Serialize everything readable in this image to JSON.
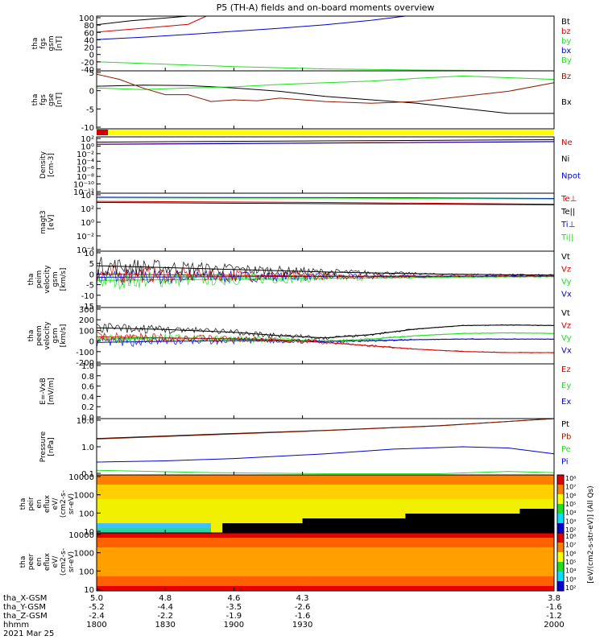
{
  "title": "P5 (TH-A) fields and on-board moments overview",
  "colors": {
    "black": "#000000",
    "red": "#d40000",
    "green": "#20e020",
    "blue": "#0000d0",
    "brown": "#8b1a00",
    "yellow": "#ffff00"
  },
  "chart_data": [
    {
      "id": "fgs_gsm",
      "type": "line",
      "ylabel": [
        "tha",
        "fgs",
        "gsm",
        "[nT]"
      ],
      "yticks": [
        "100",
        "80",
        "60",
        "40",
        "20",
        "0",
        "-20",
        "-40"
      ],
      "ylim": [
        -40,
        100
      ],
      "legend": [
        {
          "name": "Bt",
          "color": "black"
        },
        {
          "name": "bz",
          "color": "red"
        },
        {
          "name": "by",
          "color": "green"
        },
        {
          "name": "bx",
          "color": "blue"
        },
        {
          "name": "By",
          "color": "green"
        }
      ],
      "series": [
        {
          "name": "Bt",
          "color": "black",
          "x": [
            1800,
            1815,
            1830,
            1840
          ],
          "y": [
            78,
            88,
            95,
            100
          ]
        },
        {
          "name": "bz",
          "color": "red",
          "x": [
            1800,
            1820,
            1840,
            1848
          ],
          "y": [
            59,
            69,
            79,
            100
          ]
        },
        {
          "name": "bx",
          "color": "blue",
          "x": [
            1800,
            1820,
            1840,
            1860,
            1880,
            1900,
            1920,
            1935
          ],
          "y": [
            40,
            46,
            53,
            61,
            69,
            78,
            89,
            100
          ]
        },
        {
          "name": "by",
          "color": "green",
          "x": [
            1800,
            1830,
            1860,
            1900,
            1940,
            2000
          ],
          "y": [
            -17,
            -23,
            -29,
            -35,
            -38,
            -40
          ]
        }
      ]
    },
    {
      "id": "fgs_gse",
      "type": "line",
      "ylabel": [
        "tha",
        "fgs",
        "gse",
        "[nT]"
      ],
      "yticks": [
        "5",
        "0",
        "-5",
        "-10"
      ],
      "ylim": [
        -12,
        5
      ],
      "legend": [
        {
          "name": "Bz",
          "color": "brown"
        },
        {
          "name": "Bx",
          "color": "black"
        }
      ],
      "series": [
        {
          "name": "Bx",
          "color": "black",
          "x": [
            1800,
            1820,
            1840,
            1860,
            1880,
            1900,
            1920,
            1940,
            1960,
            1980,
            2000
          ],
          "y": [
            0.5,
            0.8,
            0.7,
            0.0,
            -1.0,
            -2.5,
            -3.5,
            -4.5,
            -6.0,
            -7.5,
            -7.5
          ]
        },
        {
          "name": "By",
          "color": "green",
          "x": [
            1800,
            1820,
            1840,
            1860,
            1880,
            1900,
            1920,
            1940,
            1960,
            1980,
            2000
          ],
          "y": [
            0.0,
            -0.5,
            0.0,
            0.3,
            1.0,
            1.5,
            2.0,
            2.8,
            3.5,
            3.0,
            2.5
          ]
        },
        {
          "name": "Bz",
          "color": "brown",
          "x": [
            1800,
            1810,
            1820,
            1830,
            1840,
            1850,
            1860,
            1870,
            1880,
            1890,
            1900,
            1920,
            1940,
            1960,
            1980,
            2000
          ],
          "y": [
            4.0,
            2.5,
            0.0,
            -2.0,
            -2.0,
            -4.0,
            -3.5,
            -3.8,
            -3.0,
            -3.5,
            -4.0,
            -4.5,
            -4.0,
            -2.5,
            -1.0,
            1.5
          ]
        }
      ]
    },
    {
      "id": "mode_bar",
      "type": "bar",
      "segments": [
        {
          "from": 1800,
          "to": 1805,
          "color": "red"
        },
        {
          "from": 1805,
          "to": 2000,
          "color": "yellow"
        }
      ]
    },
    {
      "id": "density",
      "type": "line",
      "log": true,
      "ylabel": [
        "Density",
        "[cm-3]"
      ],
      "yticks": [
        "10²",
        "10⁰",
        "10⁻²",
        "10⁻⁴",
        "10⁻⁶",
        "10⁻⁸",
        "10⁻¹⁰",
        "10⁻¹²"
      ],
      "ylim": [
        -12,
        2
      ],
      "legend": [
        {
          "name": "Ne",
          "color": "red"
        },
        {
          "name": "Ni",
          "color": "black"
        },
        {
          "name": "Npot",
          "color": "blue"
        }
      ],
      "series": [
        {
          "name": "Ni",
          "color": "black",
          "x": [
            1800,
            1900,
            2000
          ],
          "y": [
            0.7,
            1.0,
            1.3
          ]
        },
        {
          "name": "Ne",
          "color": "red",
          "x": [
            1800,
            1900,
            2000
          ],
          "y": [
            0.2,
            0.5,
            0.85
          ]
        },
        {
          "name": "Npot",
          "color": "blue",
          "x": [
            1800,
            1900,
            2000
          ],
          "y": [
            0.15,
            0.45,
            0.8
          ]
        }
      ]
    },
    {
      "id": "temperature",
      "type": "line",
      "log": true,
      "ylabel": [
        "magt3",
        "[eV]"
      ],
      "yticks": [
        "10⁴",
        "10²",
        "10⁰",
        "10⁻²",
        "10⁻⁴"
      ],
      "ylim": [
        -6,
        4
      ],
      "legend": [
        {
          "name": "Te⊥",
          "color": "red"
        },
        {
          "name": "Te||",
          "color": "black"
        },
        {
          "name": "Ti⊥",
          "color": "blue"
        },
        {
          "name": "Ti||",
          "color": "green"
        }
      ],
      "series": [
        {
          "name": "Ti⊥",
          "color": "blue",
          "x": [
            1800,
            1900,
            2000
          ],
          "y": [
            3.3,
            3.25,
            3.1
          ]
        },
        {
          "name": "Ti||",
          "color": "green",
          "x": [
            1800,
            1900,
            2000
          ],
          "y": [
            3.2,
            3.15,
            3.0
          ]
        },
        {
          "name": "Te⊥",
          "color": "red",
          "x": [
            1800,
            1900,
            2000
          ],
          "y": [
            2.6,
            2.4,
            2.1
          ]
        },
        {
          "name": "Te||",
          "color": "black",
          "x": [
            1800,
            1900,
            2000
          ],
          "y": [
            2.4,
            2.2,
            2.0
          ]
        }
      ]
    },
    {
      "id": "peim_velocity",
      "type": "line",
      "ylabel": [
        "tha",
        "peim",
        "velocity",
        "gsm",
        "[km/s]"
      ],
      "yticks": [
        "10",
        "5",
        "0",
        "-5",
        "-10",
        "-15"
      ],
      "ylim": [
        -15,
        12
      ],
      "legend": [
        {
          "name": "Vt",
          "color": "black"
        },
        {
          "name": "Vz",
          "color": "red"
        },
        {
          "name": "Vy",
          "color": "green"
        },
        {
          "name": "Vx",
          "color": "blue"
        }
      ],
      "series": [
        {
          "name": "Vt",
          "color": "black",
          "x": [
            1800,
            1850,
            1900,
            1950,
            2000
          ],
          "y": [
            5.0,
            3.5,
            2.0,
            1.0,
            0.5
          ]
        },
        {
          "name": "Vz",
          "color": "red",
          "x": [
            1800,
            1850,
            1900,
            1950,
            2000
          ],
          "y": [
            1.0,
            0.5,
            0.0,
            0.0,
            0.0
          ]
        },
        {
          "name": "Vy",
          "color": "green",
          "x": [
            1800,
            1850,
            1900,
            1950,
            2000
          ],
          "y": [
            -2.0,
            -1.5,
            -1.0,
            -0.5,
            -0.2
          ]
        },
        {
          "name": "Vx",
          "color": "blue",
          "x": [
            1800,
            1850,
            1900,
            1950,
            2000
          ],
          "y": [
            -0.5,
            -0.3,
            -0.2,
            0.0,
            0.0
          ]
        }
      ]
    },
    {
      "id": "peem_velocity",
      "type": "line",
      "ylabel": [
        "tha",
        "peem",
        "velocity",
        "gsm",
        "[km/s]"
      ],
      "yticks": [
        "300",
        "200",
        "100",
        "0",
        "-100",
        "-200"
      ],
      "ylim": [
        -200,
        300
      ],
      "legend": [
        {
          "name": "Vt",
          "color": "black"
        },
        {
          "name": "Vz",
          "color": "red"
        },
        {
          "name": "Vy",
          "color": "green"
        },
        {
          "name": "Vx",
          "color": "blue"
        }
      ],
      "series": [
        {
          "name": "Vt",
          "color": "black",
          "x": [
            1800,
            1830,
            1860,
            1880,
            1900,
            1920,
            1940,
            1960,
            1980,
            2000
          ],
          "y": [
            120,
            105,
            80,
            50,
            30,
            60,
            110,
            140,
            145,
            140
          ]
        },
        {
          "name": "Vy",
          "color": "green",
          "x": [
            1800,
            1830,
            1860,
            1880,
            1900,
            1920,
            1940,
            1960,
            1980,
            2000
          ],
          "y": [
            20,
            30,
            25,
            15,
            0,
            20,
            50,
            70,
            75,
            70
          ]
        },
        {
          "name": "Vx",
          "color": "blue",
          "x": [
            1800,
            1830,
            1860,
            1880,
            1900,
            1920,
            1940,
            1960,
            1980,
            2000
          ],
          "y": [
            -10,
            0,
            5,
            5,
            0,
            5,
            15,
            20,
            20,
            20
          ]
        },
        {
          "name": "Vz",
          "color": "red",
          "x": [
            1800,
            1830,
            1860,
            1880,
            1900,
            1920,
            1940,
            1960,
            1980,
            2000
          ],
          "y": [
            40,
            30,
            20,
            10,
            -10,
            -40,
            -70,
            -90,
            -100,
            -100
          ]
        }
      ]
    },
    {
      "id": "efield",
      "type": "line",
      "ylabel": [
        "E=-VxB",
        "[mV/m]"
      ],
      "yticks": [
        "1.0",
        "0.8",
        "0.6",
        "0.4",
        "0.2",
        "0.0"
      ],
      "ylim": [
        0,
        1
      ],
      "legend": [
        {
          "name": "Ez",
          "color": "red"
        },
        {
          "name": "Ey",
          "color": "green"
        },
        {
          "name": "Ex",
          "color": "blue"
        }
      ],
      "series": []
    },
    {
      "id": "pressure",
      "type": "line",
      "log": true,
      "ylabel": [
        "Pressure",
        "[nPa]"
      ],
      "yticks": [
        "10.0",
        "1.0",
        "0.1"
      ],
      "ylim": [
        -1.1,
        1.3
      ],
      "legend": [
        {
          "name": "Pt",
          "color": "black"
        },
        {
          "name": "Pb",
          "color": "brown"
        },
        {
          "name": "Pe",
          "color": "green"
        },
        {
          "name": "Pi",
          "color": "blue"
        }
      ],
      "series": [
        {
          "name": "Pt",
          "color": "black",
          "x": [
            1800,
            1850,
            1900,
            1950,
            2000
          ],
          "y": [
            0.45,
            0.63,
            0.8,
            1.0,
            1.3
          ]
        },
        {
          "name": "Pb",
          "color": "brown",
          "x": [
            1800,
            1850,
            1900,
            1950,
            2000
          ],
          "y": [
            0.43,
            0.61,
            0.79,
            0.99,
            1.3
          ]
        },
        {
          "name": "Pi",
          "color": "blue",
          "x": [
            1800,
            1830,
            1860,
            1900,
            1930,
            1960,
            1980,
            2000
          ],
          "y": [
            -0.55,
            -0.5,
            -0.4,
            -0.2,
            0.0,
            0.1,
            0.05,
            -0.2
          ]
        },
        {
          "name": "Pe",
          "color": "green",
          "x": [
            1800,
            1850,
            1900,
            1950,
            1980,
            2000
          ],
          "y": [
            -0.9,
            -1.0,
            -1.05,
            -1.05,
            -0.95,
            -1.0
          ]
        }
      ]
    },
    {
      "id": "peir_eflux",
      "type": "heatmap",
      "ylabel": [
        "tha",
        "peir",
        "en",
        "eflux",
        "eV/",
        "(cm2-s-",
        "sr-eV)"
      ],
      "yticks": [
        "10000",
        "1000",
        "100",
        "10"
      ],
      "ylim": [
        5,
        20000
      ]
    },
    {
      "id": "peer_eflux",
      "type": "heatmap",
      "ylabel": [
        "tha",
        "peer",
        "en",
        "eflux",
        "eV/",
        "(cm2-s-",
        "sr-eV)"
      ],
      "yticks": [
        "10000",
        "1000",
        "100",
        "10"
      ],
      "ylim": [
        5,
        20000
      ]
    }
  ],
  "colorbar": {
    "label": "[eV/(cm2-s-str-eV)] (All Qs)",
    "upper_ticks": [
      "10⁸",
      "10⁷",
      "10⁶",
      "10⁵",
      "10⁴",
      "10³",
      "10²"
    ],
    "lower_ticks": [
      "10⁸",
      "10⁷",
      "10⁶",
      "10⁵",
      "10⁴",
      "10³",
      "10²"
    ]
  },
  "xaxis": {
    "xlim": [
      1800,
      2000
    ],
    "row_labels": [
      "tha_X-GSM",
      "tha_Y-GSM",
      "tha_Z-GSM",
      "hhmm",
      "2021 Mar 25"
    ],
    "columns": [
      {
        "x": 1800,
        "values": [
          "5.0",
          "-5.2",
          "-2.4",
          "1800"
        ]
      },
      {
        "x": 1830,
        "values": [
          "4.8",
          "-4.4",
          "-2.2",
          "1830"
        ]
      },
      {
        "x": 1860,
        "values": [
          "4.6",
          "-3.5",
          "-1.9",
          "1900"
        ]
      },
      {
        "x": 1890,
        "values": [
          "4.3",
          "-2.6",
          "-1.6",
          "1930"
        ]
      },
      {
        "x": 2000,
        "values": [
          "3.8",
          "-1.6",
          "-1.2",
          "2000"
        ]
      }
    ]
  }
}
